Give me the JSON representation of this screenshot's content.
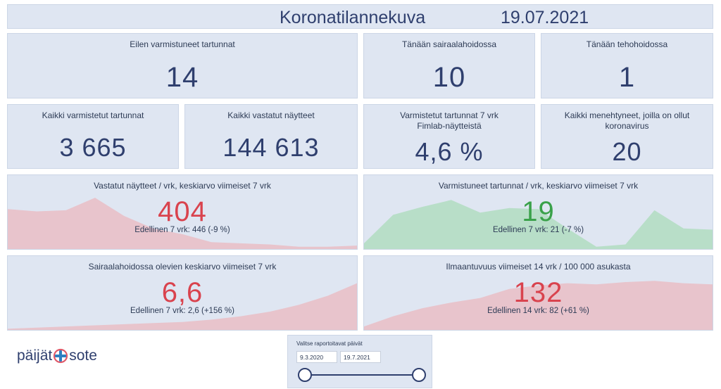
{
  "header": {
    "title": "Koronatilannekuva",
    "date": "19.07.2021"
  },
  "kpis": {
    "yesterday_cases": {
      "label": "Eilen varmistuneet tartunnat",
      "value": "14"
    },
    "hospital_today": {
      "label": "Tänään sairaalahoidossa",
      "value": "10"
    },
    "icu_today": {
      "label": "Tänään tehohoidossa",
      "value": "1"
    },
    "total_cases": {
      "label": "Kaikki varmistetut tartunnat",
      "value": "3 665"
    },
    "total_tests": {
      "label": "Kaikki vastatut näytteet",
      "value": "144 613"
    },
    "positivity": {
      "label_line1": "Varmistetut tartunnat 7 vrk",
      "label_line2": "Fimlab-näytteistä",
      "value": "4,6 %"
    },
    "deaths": {
      "label_line1": "Kaikki menehtyneet, joilla on ollut",
      "label_line2": "koronavirus",
      "value": "20"
    }
  },
  "trends": {
    "tests": {
      "label": "Vastatut näytteet / vrk, keskiarvo viimeiset 7 vrk",
      "value": "404",
      "previous": "Edellinen 7 vrk: 446 (-9 %)",
      "value_color": "#d9434e",
      "fill_color": "#e8c4cc",
      "series": [
        70,
        66,
        68,
        90,
        58,
        36,
        26,
        12,
        10,
        8,
        4,
        4,
        6
      ]
    },
    "cases": {
      "label": "Varmistuneet tartunnat / vrk, keskiarvo viimeiset 7 vrk",
      "value": "19",
      "previous": "Edellinen 7 vrk: 21 (-7 %)",
      "value_color": "#3aa14a",
      "fill_color": "#b8dec8",
      "series": [
        10,
        60,
        74,
        86,
        64,
        72,
        70,
        36,
        4,
        8,
        68,
        36,
        34
      ]
    },
    "hospital": {
      "label": "Sairaalahoidossa olevien keskiarvo viimeiset 7 vrk",
      "value": "6,6",
      "previous": "Edellinen 7 vrk: 2,6 (+156 %)",
      "value_color": "#d9434e",
      "fill_color": "#e8c4cc",
      "series": [
        2,
        4,
        6,
        8,
        10,
        12,
        14,
        18,
        24,
        32,
        44,
        60,
        82
      ]
    },
    "incidence": {
      "label": "Ilmaantuvuus viimeiset 14 vrk / 100 000 asukasta",
      "value": "132",
      "previous": "Edellinen 14 vrk: 82 (+61 %)",
      "value_color": "#d9434e",
      "fill_color": "#e8c4cc",
      "series": [
        6,
        24,
        38,
        48,
        56,
        72,
        78,
        82,
        80,
        84,
        86,
        82,
        80
      ]
    }
  },
  "logo": {
    "left": "päijät",
    "right": "sote"
  },
  "slicer": {
    "title": "Valitse raportoitavat päivät",
    "start": "9.3.2020",
    "end": "19.7.2021"
  }
}
